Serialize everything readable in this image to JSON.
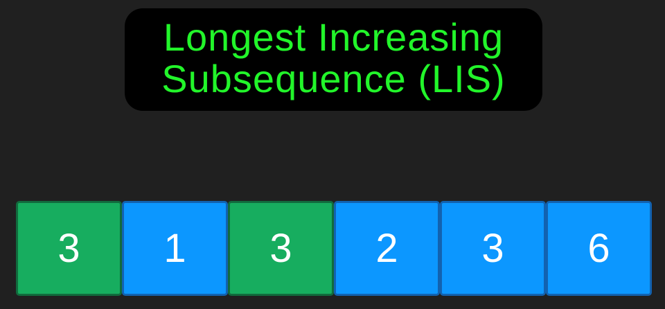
{
  "title": {
    "line1": "Longest Increasing",
    "line2": "Subsequence (LIS)"
  },
  "array": {
    "cells": [
      {
        "value": "3",
        "state": "highlighted",
        "color": "#17ad5f"
      },
      {
        "value": "1",
        "state": "normal",
        "color": "#0c97ff"
      },
      {
        "value": "3",
        "state": "highlighted",
        "color": "#17ad5f"
      },
      {
        "value": "2",
        "state": "normal",
        "color": "#0c97ff"
      },
      {
        "value": "3",
        "state": "normal",
        "color": "#0c97ff"
      },
      {
        "value": "6",
        "state": "normal",
        "color": "#0c97ff"
      }
    ]
  },
  "colors": {
    "background": "#202020",
    "title_box": "#000000",
    "title_text": "#22f52a",
    "highlight": "#17ad5f",
    "normal": "#0c97ff"
  }
}
